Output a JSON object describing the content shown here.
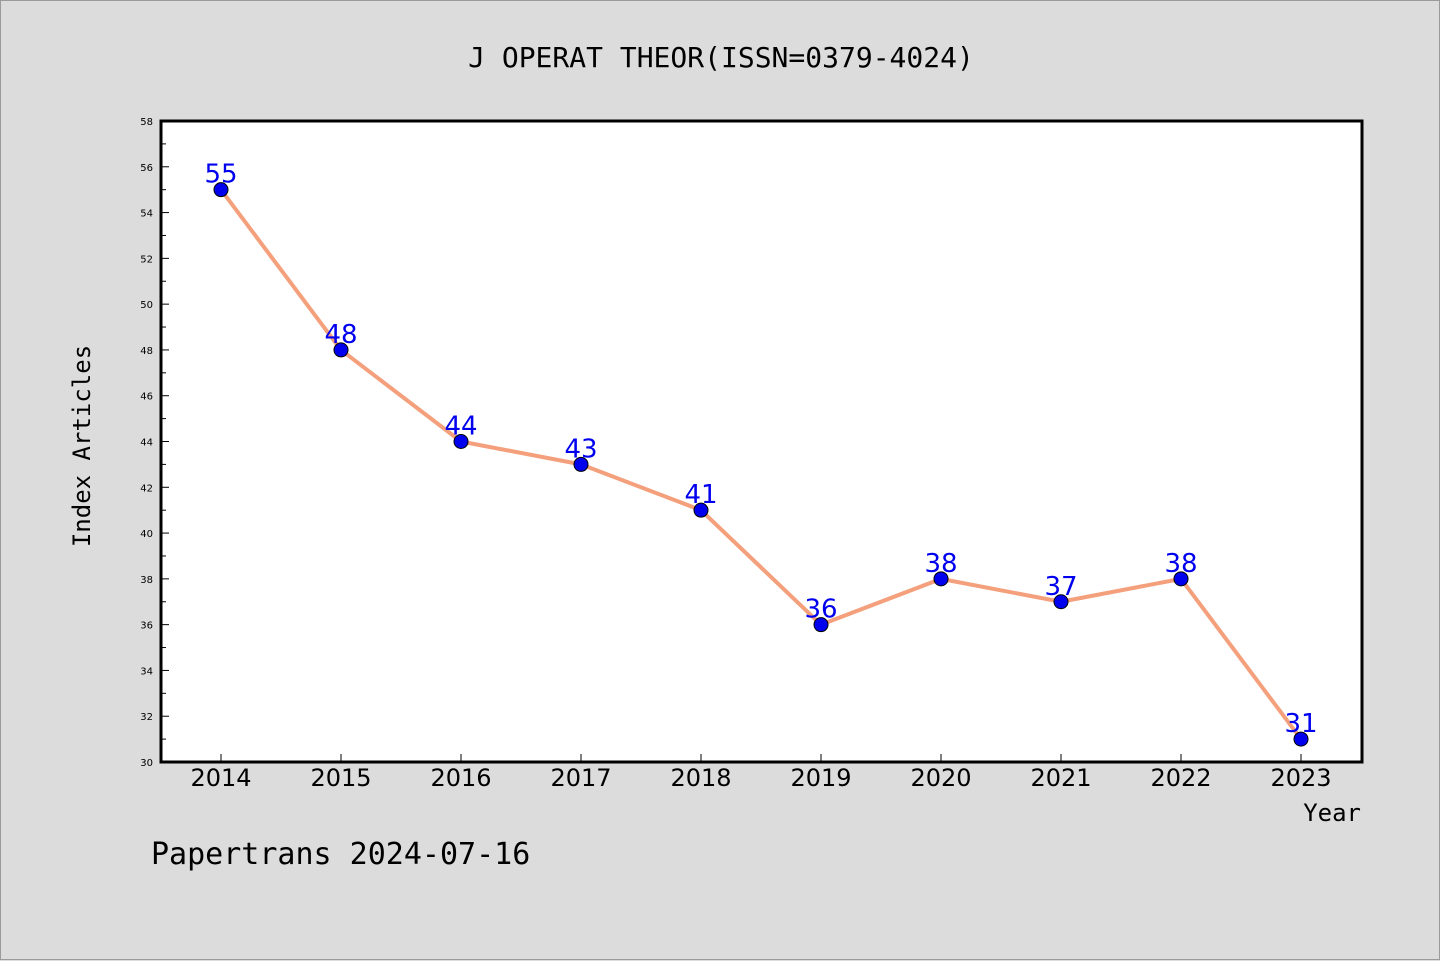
{
  "chart_data": {
    "type": "line",
    "title": "J OPERAT THEOR(ISSN=0379-4024)",
    "xlabel": "Year",
    "ylabel": "Index Articles",
    "x": [
      "2014",
      "2015",
      "2016",
      "2017",
      "2018",
      "2019",
      "2020",
      "2021",
      "2022",
      "2023"
    ],
    "series": [
      {
        "values": [
          55,
          48,
          44,
          43,
          41,
          36,
          38,
          37,
          38,
          31
        ]
      }
    ],
    "ylim": [
      30,
      58
    ],
    "y_major_ticks": [
      "30",
      "32",
      "34",
      "36",
      "38",
      "40",
      "42",
      "44",
      "46",
      "48",
      "50",
      "52",
      "54",
      "56",
      "58"
    ],
    "grid": false,
    "line_color": "#f4a07c",
    "marker_color": "#0000ee",
    "label_color": "#0000ee",
    "footer": "Papertrans 2024-07-16"
  }
}
